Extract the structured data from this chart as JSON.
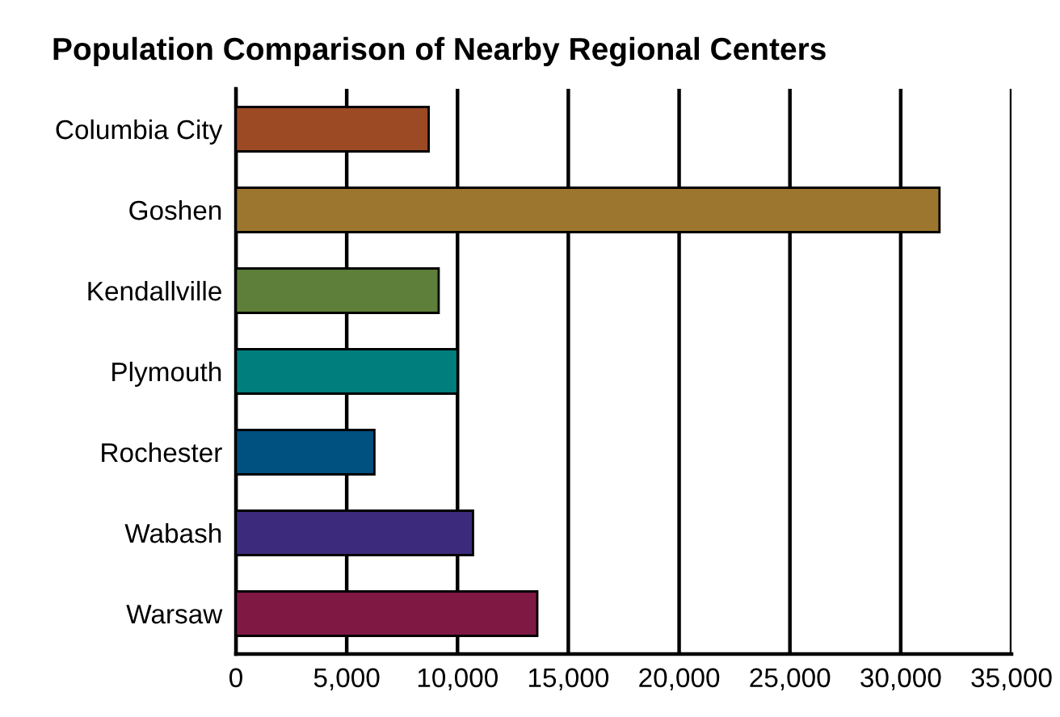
{
  "chart_data": {
    "type": "bar",
    "orientation": "horizontal",
    "title": "Population Comparison of Nearby Regional Centers",
    "categories": [
      "Columbia City",
      "Goshen",
      "Kendallville",
      "Plymouth",
      "Rochester",
      "Wabash",
      "Warsaw"
    ],
    "values": [
      8700,
      31750,
      9150,
      10000,
      6250,
      10700,
      13600
    ],
    "colors": [
      "#9c4a24",
      "#9c762e",
      "#5e7f3a",
      "#007e7e",
      "#005080",
      "#3c2b7c",
      "#801844"
    ],
    "xlim": [
      0,
      35000
    ],
    "xticks": [
      {
        "value": 0,
        "label": "0"
      },
      {
        "value": 5000,
        "label": "5,000"
      },
      {
        "value": 10000,
        "label": "10,000"
      },
      {
        "value": 15000,
        "label": "15,000"
      },
      {
        "value": 20000,
        "label": "20,000"
      },
      {
        "value": 25000,
        "label": "25,000"
      },
      {
        "value": 30000,
        "label": "30,000"
      },
      {
        "value": 35000,
        "label": "35,000"
      }
    ],
    "grid": "x"
  }
}
